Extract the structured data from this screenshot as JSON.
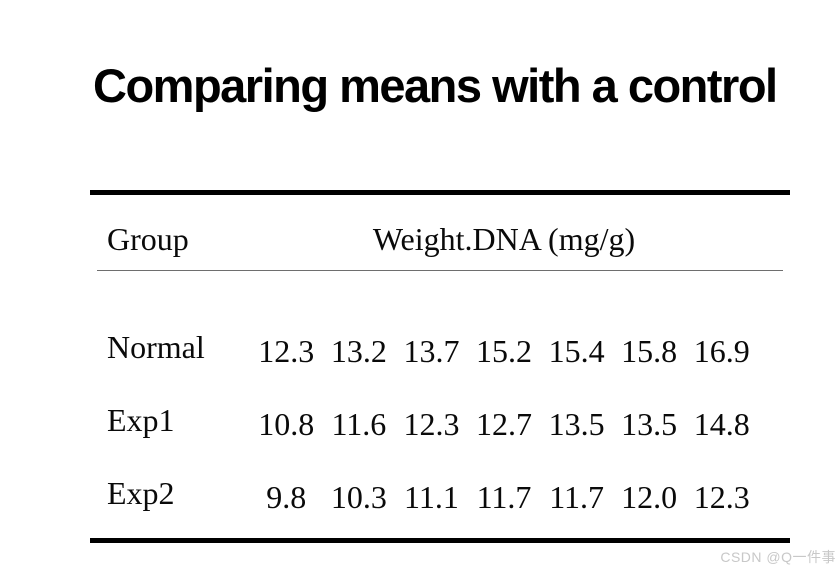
{
  "title": "Comparing means with a control",
  "table": {
    "header": {
      "group_label": "Group",
      "value_label": "Weight.DNA (mg/g)"
    },
    "rows": [
      {
        "label": "Normal",
        "values": [
          "12.3",
          "13.2",
          "13.7",
          "15.2",
          "15.4",
          "15.8",
          "16.9"
        ]
      },
      {
        "label": "Exp1",
        "values": [
          "10.8",
          "11.6",
          "12.3",
          "12.7",
          "13.5",
          "13.5",
          "14.8"
        ]
      },
      {
        "label": "Exp2",
        "values": [
          "9.8",
          "10.3",
          "11.1",
          "11.7",
          "11.7",
          "12.0",
          "12.3"
        ]
      }
    ]
  },
  "watermark": "CSDN @Q一件事",
  "colors": {
    "background": "#ffffff",
    "text": "#0a0a0a",
    "rule": "#000000",
    "thin_rule": "#6e6e6e",
    "watermark": "#c8c8c8"
  },
  "chart_data": {
    "type": "table",
    "title": "Comparing means with a control",
    "columns": [
      "Group",
      "Weight.DNA (mg/g)"
    ],
    "rows": [
      [
        "Normal",
        12.3,
        13.2,
        13.7,
        15.2,
        15.4,
        15.8,
        16.9
      ],
      [
        "Exp1",
        10.8,
        11.6,
        12.3,
        12.7,
        13.5,
        13.5,
        14.8
      ],
      [
        "Exp2",
        9.8,
        10.3,
        11.1,
        11.7,
        11.7,
        12.0,
        12.3
      ]
    ]
  }
}
